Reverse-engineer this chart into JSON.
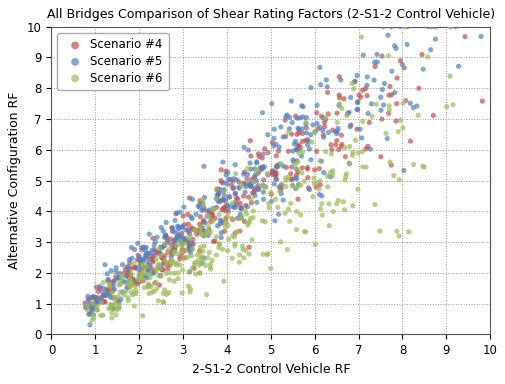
{
  "title": "All Bridges Comparison of Shear Rating Factors (2-S1-2 Control Vehicle)",
  "xlabel": "2-S1-2 Control Vehicle RF",
  "ylabel": "Alternative Configuration RF",
  "xlim": [
    0,
    10
  ],
  "ylim": [
    0,
    10
  ],
  "xticks": [
    0,
    1,
    2,
    3,
    4,
    5,
    6,
    7,
    8,
    9,
    10
  ],
  "yticks": [
    0,
    1,
    2,
    3,
    4,
    5,
    6,
    7,
    8,
    9,
    10
  ],
  "scenarios": [
    {
      "label": "Scenario #4",
      "color": "#c0504d",
      "alpha": 0.7,
      "slope": 1.02,
      "intercept": 0.05,
      "noise_base": 0.08,
      "noise_growth": 0.12,
      "n": 350,
      "x_min": 0.75,
      "x_max": 9.9,
      "beta_a": 1.3,
      "beta_b": 2.2,
      "seed": 42
    },
    {
      "label": "Scenario #5",
      "color": "#4f81bd",
      "alpha": 0.7,
      "slope": 1.08,
      "intercept": 0.05,
      "noise_base": 0.1,
      "noise_growth": 0.14,
      "n": 370,
      "x_min": 0.75,
      "x_max": 9.9,
      "beta_a": 1.3,
      "beta_b": 2.2,
      "seed": 43
    },
    {
      "label": "Scenario #6",
      "color": "#9bbb59",
      "alpha": 0.7,
      "slope": 0.82,
      "intercept": 0.0,
      "noise_base": 0.1,
      "noise_growth": 0.16,
      "n": 350,
      "x_min": 0.75,
      "x_max": 9.9,
      "beta_a": 1.3,
      "beta_b": 2.2,
      "seed": 44
    }
  ],
  "background_color": "#ffffff",
  "grid_color": "#999999",
  "marker": "o",
  "marker_size": 14,
  "title_fontsize": 9,
  "label_fontsize": 9,
  "tick_fontsize": 8.5,
  "legend_fontsize": 8.5
}
